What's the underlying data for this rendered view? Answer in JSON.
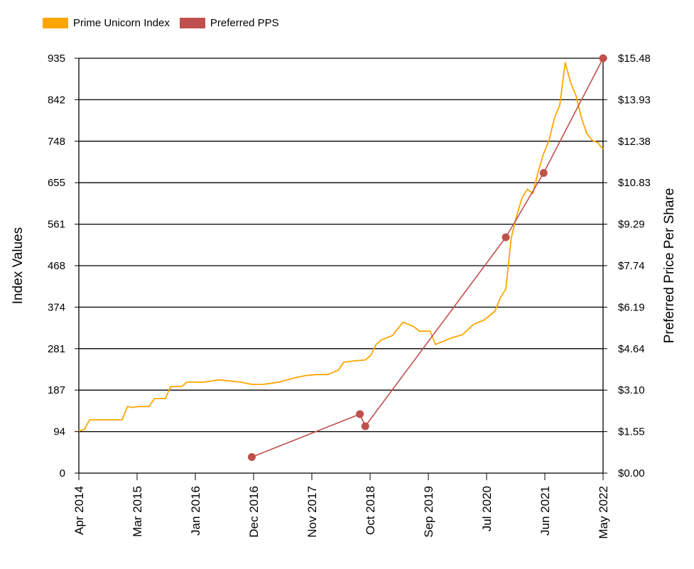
{
  "chart_data": {
    "type": "line",
    "title": "",
    "ylabel": "Index Values",
    "y2label": "Preferred Price Per Share",
    "ylim": [
      0,
      935
    ],
    "y2lim": [
      0,
      15.48
    ],
    "xlim": [
      "2014-04",
      "2022-05"
    ],
    "grid": true,
    "legend_position": "top-left",
    "x_ticks": [
      "Apr 2014",
      "Mar 2015",
      "Jan 2016",
      "Dec 2016",
      "Nov 2017",
      "Oct 2018",
      "Sep 2019",
      "Jul 2020",
      "Jun 2021",
      "May 2022"
    ],
    "y_ticks": [
      "0",
      "94",
      "187",
      "281",
      "374",
      "468",
      "561",
      "655",
      "748",
      "842",
      "935"
    ],
    "y2_ticks": [
      "$0.00",
      "$1.55",
      "$3.10",
      "$4.64",
      "$6.19",
      "$7.74",
      "$9.29",
      "$10.83",
      "$12.38",
      "$13.93",
      "$15.48"
    ],
    "series": [
      {
        "name": "Prime Unicorn Index",
        "axis": "left",
        "color": "#FFA500",
        "x": [
          "2014-04",
          "2014-05",
          "2014-06",
          "2014-07",
          "2014-09",
          "2014-12",
          "2015-01",
          "2015-02",
          "2015-03",
          "2015-05",
          "2015-06",
          "2015-08",
          "2015-09",
          "2015-11",
          "2015-12",
          "2016-01",
          "2016-03",
          "2016-06",
          "2016-10",
          "2016-12",
          "2017-02",
          "2017-05",
          "2017-08",
          "2017-10",
          "2017-12",
          "2018-02",
          "2018-04",
          "2018-05",
          "2018-07",
          "2018-09",
          "2018-10",
          "2018-11",
          "2018-12",
          "2019-02",
          "2019-04",
          "2019-06",
          "2019-07",
          "2019-09",
          "2019-10",
          "2019-11",
          "2020-01",
          "2020-03",
          "2020-05",
          "2020-07",
          "2020-09",
          "2020-10",
          "2020-11",
          "2020-12",
          "2021-01",
          "2021-02",
          "2021-03",
          "2021-04",
          "2021-05",
          "2021-06",
          "2021-07",
          "2021-08",
          "2021-09",
          "2021-10",
          "2021-11",
          "2021-12",
          "2022-01",
          "2022-02",
          "2022-03",
          "2022-04",
          "2022-05"
        ],
        "values": [
          95,
          98,
          120,
          120,
          120,
          120,
          150,
          148,
          150,
          150,
          168,
          168,
          195,
          195,
          205,
          205,
          205,
          210,
          205,
          200,
          200,
          205,
          215,
          220,
          222,
          222,
          232,
          250,
          253,
          255,
          265,
          290,
          300,
          310,
          340,
          330,
          320,
          320,
          290,
          295,
          305,
          312,
          335,
          345,
          365,
          395,
          415,
          530,
          580,
          620,
          640,
          630,
          680,
          720,
          750,
          800,
          830,
          925,
          880,
          850,
          800,
          765,
          750,
          745,
          730
        ]
      },
      {
        "name": "Preferred PPS",
        "axis": "right",
        "color": "#C0504D",
        "x": [
          "2016-12",
          "2018-08",
          "2018-09",
          "2020-11",
          "2021-06",
          "2022-05"
        ],
        "values": [
          0.6,
          2.2,
          1.75,
          8.8,
          11.2,
          15.48
        ]
      }
    ]
  }
}
